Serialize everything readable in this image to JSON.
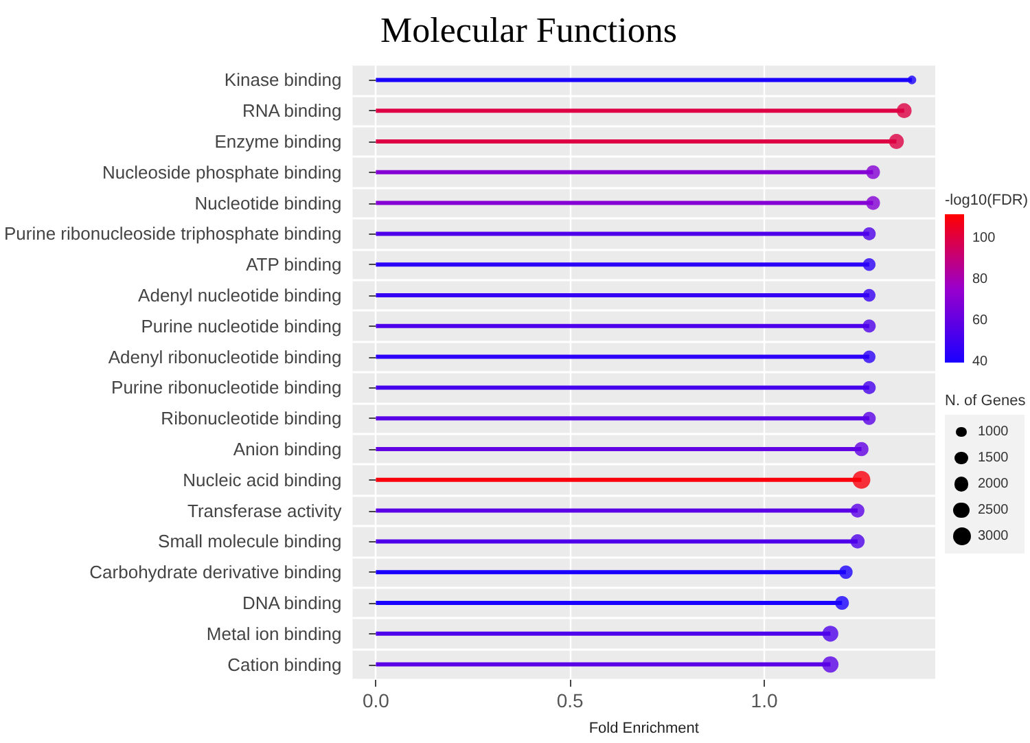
{
  "chart_data": {
    "type": "lollipop",
    "title": "Molecular Functions",
    "xlabel": "Fold Enrichment",
    "orientation": "horizontal",
    "legend_title": "N. of Genes",
    "clabel": "-log10(FDR)",
    "categories": [
      "Kinase binding",
      "RNA binding",
      "Enzyme binding",
      "Nucleoside phosphate binding",
      "Nucleotide binding",
      "Purine ribonucleoside triphosphate binding",
      "ATP binding",
      "Adenyl nucleotide binding",
      "Purine nucleotide binding",
      "Adenyl ribonucleotide binding",
      "Purine ribonucleotide binding",
      "Ribonucleotide binding",
      "Anion binding",
      "Nucleic acid binding",
      "Transferase activity",
      "Small molecule binding",
      "Carbohydrate derivative binding",
      "DNA binding",
      "Metal ion binding",
      "Cation binding"
    ],
    "values": [
      1.38,
      1.36,
      1.34,
      1.28,
      1.28,
      1.27,
      1.27,
      1.27,
      1.27,
      1.27,
      1.27,
      1.27,
      1.25,
      1.25,
      1.24,
      1.24,
      1.21,
      1.2,
      1.17,
      1.17
    ],
    "cvalues": [
      40,
      100,
      100,
      70,
      70,
      55,
      45,
      48,
      55,
      45,
      52,
      58,
      60,
      110,
      58,
      55,
      40,
      40,
      55,
      58
    ],
    "sizes": [
      700,
      2100,
      2100,
      1800,
      1800,
      1600,
      1500,
      1500,
      1600,
      1500,
      1600,
      1600,
      1900,
      3000,
      1800,
      1900,
      1700,
      1800,
      2400,
      2500
    ],
    "size_legend": [
      1000,
      1500,
      2000,
      2500,
      3000
    ],
    "clim": [
      40,
      112
    ],
    "cticks": [
      40,
      60,
      80,
      100
    ],
    "xlim": [
      -0.06,
      1.44
    ],
    "xticks": [
      {
        "value": 0,
        "label": "0.0"
      },
      0.5,
      {
        "value": 1,
        "label": "1.0"
      }
    ],
    "grid": true
  }
}
